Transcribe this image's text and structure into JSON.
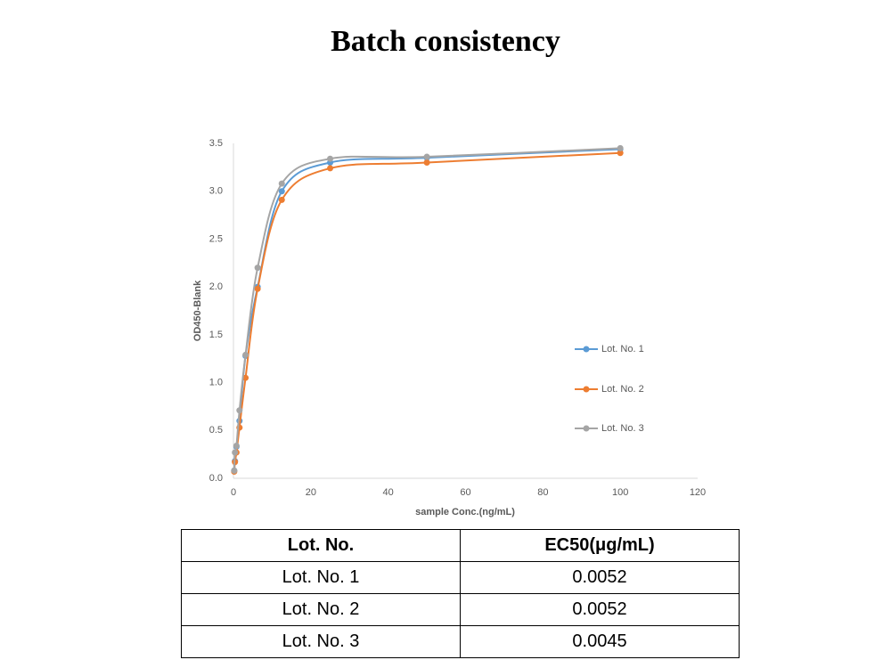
{
  "chart_data": {
    "type": "line",
    "title": "Batch consistency",
    "x_label": "sample Conc.(ng/mL)",
    "y_label": "OD450-Blank",
    "x": [
      0.195,
      0.39,
      0.78,
      1.5625,
      3.125,
      6.25,
      12.5,
      25,
      50,
      100
    ],
    "series": [
      {
        "name": "Lot. No. 1",
        "color": "#5b9bd5",
        "values": [
          0.08,
          0.18,
          0.33,
          0.6,
          1.28,
          2.0,
          3.0,
          3.3,
          3.35,
          3.44
        ]
      },
      {
        "name": "Lot. No. 2",
        "color": "#ed7d31",
        "values": [
          0.07,
          0.17,
          0.27,
          0.53,
          1.05,
          1.98,
          2.91,
          3.24,
          3.3,
          3.4
        ]
      },
      {
        "name": "Lot. No. 3",
        "color": "#a5a5a5",
        "values": [
          0.08,
          0.27,
          0.34,
          0.71,
          1.29,
          2.2,
          3.08,
          3.34,
          3.36,
          3.45
        ]
      }
    ],
    "xlim": [
      0,
      120
    ],
    "xticks": [
      0,
      20,
      40,
      60,
      80,
      100,
      120
    ],
    "ylim": [
      0,
      3.5
    ],
    "yticks": [
      {
        "value": 0,
        "label": "0.0"
      },
      0.5,
      {
        "value": 1,
        "label": "1.0"
      },
      1.5,
      {
        "value": 2,
        "label": "2.0"
      },
      2.5,
      {
        "value": 3,
        "label": "3.0"
      },
      3.5
    ],
    "grid": false,
    "legend": "right"
  },
  "table": {
    "header": [
      "Lot. No.",
      "EC50(μg/mL)"
    ],
    "rows": [
      [
        "Lot. No. 1",
        "0.0052"
      ],
      [
        "Lot. No. 2",
        "0.0052"
      ],
      [
        "Lot. No. 3",
        "0.0045"
      ]
    ]
  }
}
